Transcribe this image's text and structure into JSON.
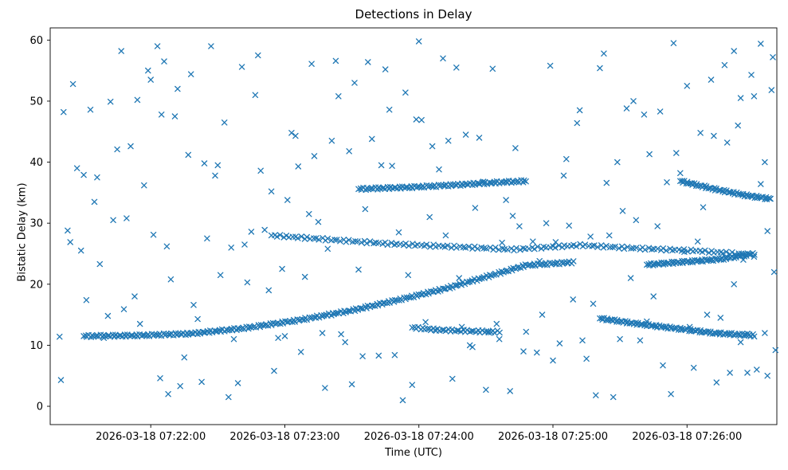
{
  "title": "Detections in Delay",
  "xlabel": "Time (UTC)",
  "ylabel": "Bistatic Delay (km)",
  "chart_data": {
    "type": "scatter",
    "marker": "x",
    "marker_color": "#1f77b4",
    "x_unit": "minutes since 2026-03-18 07:21:00 UTC",
    "xlim": [
      0.25,
      5.67
    ],
    "ylim": [
      -3,
      62
    ],
    "grid": false,
    "legend": "none",
    "x_ticks": [
      {
        "t": 1,
        "label": "2026-03-18 07:22:00"
      },
      {
        "t": 2,
        "label": "2026-03-18 07:23:00"
      },
      {
        "t": 3,
        "label": "2026-03-18 07:24:00"
      },
      {
        "t": 4,
        "label": "2026-03-18 07:25:00"
      },
      {
        "t": 5,
        "label": "2026-03-18 07:26:00"
      }
    ],
    "y_ticks": [
      0,
      10,
      20,
      30,
      40,
      50,
      60
    ],
    "tracks": [
      {
        "name": "main-rising-arc",
        "marker_count": 290,
        "control_points": [
          [
            0.5,
            11.5
          ],
          [
            0.9,
            11.6
          ],
          [
            1.3,
            11.9
          ],
          [
            1.7,
            12.8
          ],
          [
            2.1,
            14.1
          ],
          [
            2.5,
            15.7
          ],
          [
            2.9,
            17.7
          ],
          [
            3.2,
            19.3
          ],
          [
            3.5,
            21.2
          ],
          [
            3.8,
            23.1
          ],
          [
            4.15,
            23.6
          ]
        ]
      },
      {
        "name": "mid-band-26",
        "marker_count": 160,
        "control_points": [
          [
            1.9,
            28.0
          ],
          [
            2.4,
            27.2
          ],
          [
            2.8,
            26.6
          ],
          [
            3.2,
            26.2
          ],
          [
            3.7,
            25.7
          ],
          [
            4.2,
            26.4
          ],
          [
            4.6,
            25.9
          ],
          [
            5.05,
            25.5
          ],
          [
            5.45,
            24.9
          ]
        ]
      },
      {
        "name": "band-36-rising",
        "marker_count": 100,
        "control_points": [
          [
            2.55,
            35.6
          ],
          [
            2.95,
            35.9
          ],
          [
            3.3,
            36.3
          ],
          [
            3.6,
            36.7
          ],
          [
            3.8,
            36.9
          ]
        ]
      },
      {
        "name": "band-36-falling",
        "marker_count": 65,
        "control_points": [
          [
            4.95,
            36.9
          ],
          [
            5.2,
            35.6
          ],
          [
            5.45,
            34.5
          ],
          [
            5.62,
            34.0
          ]
        ]
      },
      {
        "name": "right-band-24",
        "marker_count": 75,
        "control_points": [
          [
            4.7,
            23.2
          ],
          [
            5.0,
            23.7
          ],
          [
            5.25,
            24.1
          ],
          [
            5.5,
            25.0
          ]
        ]
      },
      {
        "name": "right-falling-12",
        "marker_count": 105,
        "control_points": [
          [
            4.35,
            14.4
          ],
          [
            4.6,
            13.6
          ],
          [
            4.9,
            12.8
          ],
          [
            5.2,
            12.0
          ],
          [
            5.5,
            11.6
          ]
        ]
      },
      {
        "name": "cluster-12",
        "marker_count": 42,
        "control_points": [
          [
            2.95,
            12.9
          ],
          [
            3.15,
            12.5
          ],
          [
            3.4,
            12.3
          ],
          [
            3.6,
            12.2
          ]
        ]
      }
    ],
    "clutter_points": [
      [
        0.32,
        11.4
      ],
      [
        0.33,
        4.3
      ],
      [
        0.35,
        48.2
      ],
      [
        0.38,
        28.8
      ],
      [
        0.4,
        26.9
      ],
      [
        0.42,
        52.8
      ],
      [
        0.45,
        39.0
      ],
      [
        0.48,
        25.5
      ],
      [
        0.5,
        37.9
      ],
      [
        0.52,
        17.4
      ],
      [
        0.55,
        48.6
      ],
      [
        0.58,
        33.5
      ],
      [
        0.6,
        37.5
      ],
      [
        0.62,
        23.3
      ],
      [
        0.65,
        11.2
      ],
      [
        0.68,
        14.8
      ],
      [
        0.7,
        49.9
      ],
      [
        0.72,
        30.5
      ],
      [
        0.75,
        42.1
      ],
      [
        0.78,
        58.2
      ],
      [
        0.8,
        15.9
      ],
      [
        0.82,
        30.8
      ],
      [
        0.85,
        42.6
      ],
      [
        0.88,
        18.0
      ],
      [
        0.9,
        50.2
      ],
      [
        0.92,
        13.5
      ],
      [
        0.95,
        36.2
      ],
      [
        0.98,
        55.0
      ],
      [
        1.0,
        53.5
      ],
      [
        1.02,
        28.1
      ],
      [
        1.05,
        59.0
      ],
      [
        1.07,
        4.6
      ],
      [
        1.08,
        47.8
      ],
      [
        1.1,
        56.5
      ],
      [
        1.12,
        26.2
      ],
      [
        1.13,
        2.0
      ],
      [
        1.15,
        20.8
      ],
      [
        1.18,
        47.5
      ],
      [
        1.2,
        52.0
      ],
      [
        1.22,
        3.3
      ],
      [
        1.25,
        8.0
      ],
      [
        1.28,
        41.2
      ],
      [
        1.3,
        54.4
      ],
      [
        1.32,
        16.6
      ],
      [
        1.35,
        14.3
      ],
      [
        1.38,
        4.0
      ],
      [
        1.4,
        39.8
      ],
      [
        1.42,
        27.5
      ],
      [
        1.45,
        59.0
      ],
      [
        1.48,
        37.8
      ],
      [
        1.5,
        39.5
      ],
      [
        1.52,
        21.5
      ],
      [
        1.55,
        46.5
      ],
      [
        1.58,
        1.5
      ],
      [
        1.6,
        26.0
      ],
      [
        1.62,
        11.0
      ],
      [
        1.65,
        3.8
      ],
      [
        1.68,
        55.6
      ],
      [
        1.7,
        26.5
      ],
      [
        1.72,
        20.3
      ],
      [
        1.75,
        28.6
      ],
      [
        1.78,
        51.0
      ],
      [
        1.8,
        57.5
      ],
      [
        1.82,
        38.6
      ],
      [
        1.85,
        28.9
      ],
      [
        1.88,
        19.0
      ],
      [
        1.9,
        35.2
      ],
      [
        1.92,
        5.8
      ],
      [
        1.95,
        11.2
      ],
      [
        1.98,
        22.5
      ],
      [
        2.0,
        11.5
      ],
      [
        2.02,
        33.8
      ],
      [
        2.05,
        44.8
      ],
      [
        2.08,
        44.3
      ],
      [
        2.1,
        39.3
      ],
      [
        2.12,
        8.9
      ],
      [
        2.15,
        21.2
      ],
      [
        2.18,
        31.5
      ],
      [
        2.2,
        56.1
      ],
      [
        2.22,
        41.0
      ],
      [
        2.25,
        30.2
      ],
      [
        2.28,
        12.0
      ],
      [
        2.3,
        3.0
      ],
      [
        2.32,
        25.8
      ],
      [
        2.35,
        43.5
      ],
      [
        2.38,
        56.6
      ],
      [
        2.4,
        50.8
      ],
      [
        2.42,
        11.8
      ],
      [
        2.45,
        10.5
      ],
      [
        2.48,
        41.8
      ],
      [
        2.5,
        3.6
      ],
      [
        2.52,
        53.0
      ],
      [
        2.55,
        22.4
      ],
      [
        2.58,
        8.2
      ],
      [
        2.6,
        32.3
      ],
      [
        2.62,
        56.4
      ],
      [
        2.65,
        43.8
      ],
      [
        2.68,
        26.8
      ],
      [
        2.7,
        8.3
      ],
      [
        2.72,
        39.5
      ],
      [
        2.75,
        55.2
      ],
      [
        2.78,
        48.6
      ],
      [
        2.8,
        39.4
      ],
      [
        2.82,
        8.4
      ],
      [
        2.85,
        28.5
      ],
      [
        2.88,
        1.0
      ],
      [
        2.9,
        51.4
      ],
      [
        2.92,
        21.5
      ],
      [
        2.95,
        3.5
      ],
      [
        2.98,
        47.0
      ],
      [
        3.0,
        59.8
      ],
      [
        3.02,
        46.9
      ],
      [
        3.05,
        13.8
      ],
      [
        3.08,
        31.0
      ],
      [
        3.1,
        42.6
      ],
      [
        3.12,
        12.5
      ],
      [
        3.15,
        38.8
      ],
      [
        3.18,
        57.0
      ],
      [
        3.2,
        28.0
      ],
      [
        3.22,
        43.5
      ],
      [
        3.25,
        4.5
      ],
      [
        3.28,
        55.5
      ],
      [
        3.3,
        21.0
      ],
      [
        3.32,
        13.0
      ],
      [
        3.35,
        44.5
      ],
      [
        3.38,
        10.0
      ],
      [
        3.4,
        9.7
      ],
      [
        3.42,
        32.5
      ],
      [
        3.45,
        44.0
      ],
      [
        3.48,
        36.8
      ],
      [
        3.5,
        2.7
      ],
      [
        3.52,
        12.1
      ],
      [
        3.55,
        55.3
      ],
      [
        3.58,
        13.5
      ],
      [
        3.6,
        11.0
      ],
      [
        3.62,
        26.8
      ],
      [
        3.65,
        33.8
      ],
      [
        3.68,
        2.5
      ],
      [
        3.7,
        31.2
      ],
      [
        3.72,
        42.3
      ],
      [
        3.75,
        29.5
      ],
      [
        3.78,
        9.0
      ],
      [
        3.8,
        12.2
      ],
      [
        3.85,
        27.0
      ],
      [
        3.88,
        8.8
      ],
      [
        3.9,
        23.8
      ],
      [
        3.92,
        15.0
      ],
      [
        3.95,
        30.0
      ],
      [
        3.98,
        55.8
      ],
      [
        4.0,
        7.5
      ],
      [
        4.02,
        26.9
      ],
      [
        4.05,
        10.3
      ],
      [
        4.08,
        37.8
      ],
      [
        4.1,
        40.5
      ],
      [
        4.12,
        29.6
      ],
      [
        4.15,
        17.5
      ],
      [
        4.18,
        46.4
      ],
      [
        4.2,
        48.5
      ],
      [
        4.22,
        10.8
      ],
      [
        4.25,
        7.8
      ],
      [
        4.28,
        27.8
      ],
      [
        4.3,
        16.8
      ],
      [
        4.32,
        1.8
      ],
      [
        4.35,
        55.4
      ],
      [
        4.38,
        57.8
      ],
      [
        4.4,
        36.6
      ],
      [
        4.42,
        28.0
      ],
      [
        4.45,
        1.5
      ],
      [
        4.48,
        40.0
      ],
      [
        4.5,
        11.0
      ],
      [
        4.52,
        32.0
      ],
      [
        4.55,
        48.8
      ],
      [
        4.58,
        21.0
      ],
      [
        4.6,
        50.0
      ],
      [
        4.62,
        30.5
      ],
      [
        4.65,
        10.8
      ],
      [
        4.68,
        47.8
      ],
      [
        4.7,
        13.9
      ],
      [
        4.72,
        41.3
      ],
      [
        4.75,
        18.0
      ],
      [
        4.78,
        29.5
      ],
      [
        4.8,
        48.3
      ],
      [
        4.82,
        6.7
      ],
      [
        4.85,
        36.7
      ],
      [
        4.88,
        2.0
      ],
      [
        4.9,
        59.5
      ],
      [
        4.92,
        41.5
      ],
      [
        4.95,
        38.2
      ],
      [
        4.98,
        25.3
      ],
      [
        5.0,
        52.5
      ],
      [
        5.02,
        13.0
      ],
      [
        5.05,
        6.3
      ],
      [
        5.08,
        27.0
      ],
      [
        5.1,
        44.8
      ],
      [
        5.12,
        32.6
      ],
      [
        5.15,
        15.0
      ],
      [
        5.18,
        53.5
      ],
      [
        5.2,
        44.3
      ],
      [
        5.22,
        3.9
      ],
      [
        5.25,
        14.5
      ],
      [
        5.28,
        55.9
      ],
      [
        5.3,
        43.2
      ],
      [
        5.32,
        5.5
      ],
      [
        5.35,
        58.2
      ],
      [
        5.38,
        46.0
      ],
      [
        5.4,
        50.5
      ],
      [
        5.42,
        24.0
      ],
      [
        5.45,
        5.5
      ],
      [
        5.48,
        54.3
      ],
      [
        5.5,
        50.8
      ],
      [
        5.52,
        6.0
      ],
      [
        5.55,
        59.4
      ],
      [
        5.58,
        12.0
      ],
      [
        5.6,
        5.0
      ],
      [
        5.62,
        34.0
      ],
      [
        5.63,
        51.8
      ],
      [
        5.64,
        57.2
      ],
      [
        5.65,
        22.0
      ],
      [
        5.66,
        9.2
      ],
      [
        5.6,
        28.7
      ],
      [
        5.58,
        40.0
      ],
      [
        5.55,
        36.4
      ],
      [
        5.5,
        24.5
      ],
      [
        5.45,
        11.9
      ],
      [
        5.4,
        10.5
      ],
      [
        5.35,
        20.0
      ]
    ]
  }
}
